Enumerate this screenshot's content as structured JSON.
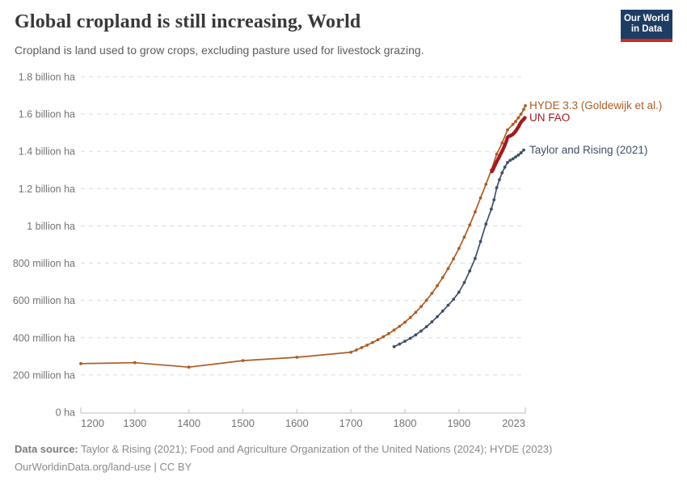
{
  "header": {
    "title": "Global cropland is still increasing, World",
    "subtitle": "Cropland is land used to grow crops, excluding pasture used for livestock grazing.",
    "logo": {
      "line1": "Our World",
      "line2": "in Data",
      "bg_color": "#1d3d63",
      "bar_color": "#d02b20"
    }
  },
  "chart_data": {
    "type": "line",
    "title": "Global cropland is still increasing, World",
    "xlabel": "",
    "ylabel": "",
    "unit": "million ha",
    "xlim": [
      1200,
      2023
    ],
    "ylim": [
      0,
      1800
    ],
    "grid": "horizontal-dashed",
    "legend_position": "right of line ends",
    "grid_color": "#dcdcdc",
    "axis_color": "#c9c9c9",
    "tick_text_color": "#737373",
    "x_ticks": [
      {
        "value": 1200,
        "label": "1200",
        "anchor": "start"
      },
      {
        "value": 1300,
        "label": "1300",
        "anchor": "middle"
      },
      {
        "value": 1400,
        "label": "1400",
        "anchor": "middle"
      },
      {
        "value": 1500,
        "label": "1500",
        "anchor": "middle"
      },
      {
        "value": 1600,
        "label": "1600",
        "anchor": "middle"
      },
      {
        "value": 1700,
        "label": "1700",
        "anchor": "middle"
      },
      {
        "value": 1800,
        "label": "1800",
        "anchor": "middle"
      },
      {
        "value": 1900,
        "label": "1900",
        "anchor": "middle"
      },
      {
        "value": 2023,
        "label": "2023",
        "anchor": "end"
      }
    ],
    "y_ticks": [
      {
        "value": 0,
        "label": "0 ha"
      },
      {
        "value": 200,
        "label": "200 million ha"
      },
      {
        "value": 400,
        "label": "400 million ha"
      },
      {
        "value": 600,
        "label": "600 million ha"
      },
      {
        "value": 800,
        "label": "800 million ha"
      },
      {
        "value": 1000,
        "label": "1 billion ha"
      },
      {
        "value": 1200,
        "label": "1.2 billion ha"
      },
      {
        "value": 1400,
        "label": "1.4 billion ha"
      },
      {
        "value": 1600,
        "label": "1.6 billion ha"
      },
      {
        "value": 1800,
        "label": "1.8 billion ha"
      }
    ],
    "series": [
      {
        "name": "HYDE 3.3 (Goldewijk et al.)",
        "color": "#AD5C26",
        "stroke_width": 1.7,
        "marker_radius": 1.9,
        "points": [
          [
            1200,
            261
          ],
          [
            1300,
            266
          ],
          [
            1400,
            242
          ],
          [
            1500,
            277
          ],
          [
            1600,
            295
          ],
          [
            1700,
            322
          ],
          [
            1710,
            334
          ],
          [
            1720,
            347
          ],
          [
            1730,
            360
          ],
          [
            1740,
            374
          ],
          [
            1750,
            389
          ],
          [
            1760,
            405
          ],
          [
            1770,
            422
          ],
          [
            1780,
            441
          ],
          [
            1790,
            461
          ],
          [
            1800,
            483
          ],
          [
            1810,
            508
          ],
          [
            1820,
            536
          ],
          [
            1830,
            567
          ],
          [
            1840,
            601
          ],
          [
            1850,
            638
          ],
          [
            1860,
            679
          ],
          [
            1870,
            723
          ],
          [
            1880,
            771
          ],
          [
            1890,
            823
          ],
          [
            1900,
            879
          ],
          [
            1910,
            940
          ],
          [
            1920,
            1005
          ],
          [
            1930,
            1075
          ],
          [
            1940,
            1150
          ],
          [
            1950,
            1223
          ],
          [
            1960,
            1300
          ],
          [
            1970,
            1385
          ],
          [
            1980,
            1445
          ],
          [
            1990,
            1515
          ],
          [
            2000,
            1545
          ],
          [
            2005,
            1560
          ],
          [
            2010,
            1580
          ],
          [
            2015,
            1600
          ],
          [
            2020,
            1625
          ],
          [
            2023,
            1645
          ]
        ]
      },
      {
        "name": "Taylor and Rising (2021)",
        "color": "#3E4F68",
        "stroke_width": 1.7,
        "marker_radius": 1.9,
        "points": [
          [
            1780,
            352
          ],
          [
            1790,
            366
          ],
          [
            1800,
            381
          ],
          [
            1810,
            397
          ],
          [
            1820,
            415
          ],
          [
            1830,
            436
          ],
          [
            1840,
            459
          ],
          [
            1850,
            485
          ],
          [
            1860,
            513
          ],
          [
            1870,
            543
          ],
          [
            1880,
            574
          ],
          [
            1890,
            606
          ],
          [
            1900,
            644
          ],
          [
            1910,
            696
          ],
          [
            1920,
            758
          ],
          [
            1930,
            825
          ],
          [
            1940,
            916
          ],
          [
            1950,
            1010
          ],
          [
            1960,
            1090
          ],
          [
            1965,
            1140
          ],
          [
            1970,
            1205
          ],
          [
            1975,
            1248
          ],
          [
            1980,
            1285
          ],
          [
            1985,
            1315
          ],
          [
            1990,
            1340
          ],
          [
            1995,
            1352
          ],
          [
            2000,
            1360
          ],
          [
            2005,
            1370
          ],
          [
            2010,
            1380
          ],
          [
            2015,
            1392
          ],
          [
            2020,
            1407
          ]
        ]
      },
      {
        "name": "UN FAO",
        "color": "#A2191F",
        "stroke_width": 4.2,
        "marker_radius": 2.2,
        "points": [
          [
            1961,
            1292
          ],
          [
            1963,
            1301
          ],
          [
            1965,
            1315
          ],
          [
            1967,
            1326
          ],
          [
            1970,
            1345
          ],
          [
            1973,
            1361
          ],
          [
            1975,
            1372
          ],
          [
            1978,
            1390
          ],
          [
            1980,
            1401
          ],
          [
            1983,
            1420
          ],
          [
            1985,
            1433
          ],
          [
            1988,
            1456
          ],
          [
            1990,
            1475
          ],
          [
            1992,
            1480
          ],
          [
            1995,
            1483
          ],
          [
            1998,
            1488
          ],
          [
            2000,
            1492
          ],
          [
            2002,
            1498
          ],
          [
            2005,
            1508
          ],
          [
            2008,
            1522
          ],
          [
            2010,
            1530
          ],
          [
            2012,
            1541
          ],
          [
            2015,
            1557
          ],
          [
            2018,
            1567
          ],
          [
            2020,
            1572
          ],
          [
            2022,
            1580
          ]
        ]
      }
    ]
  },
  "footer": {
    "source_label": "Data source:",
    "sources": "Taylor & Rising (2021); Food and Agriculture Organization of the United Nations (2024); HYDE (2023)",
    "url_label": "OurWorldinData.org/land-use",
    "separator": "|",
    "license": "CC BY"
  }
}
